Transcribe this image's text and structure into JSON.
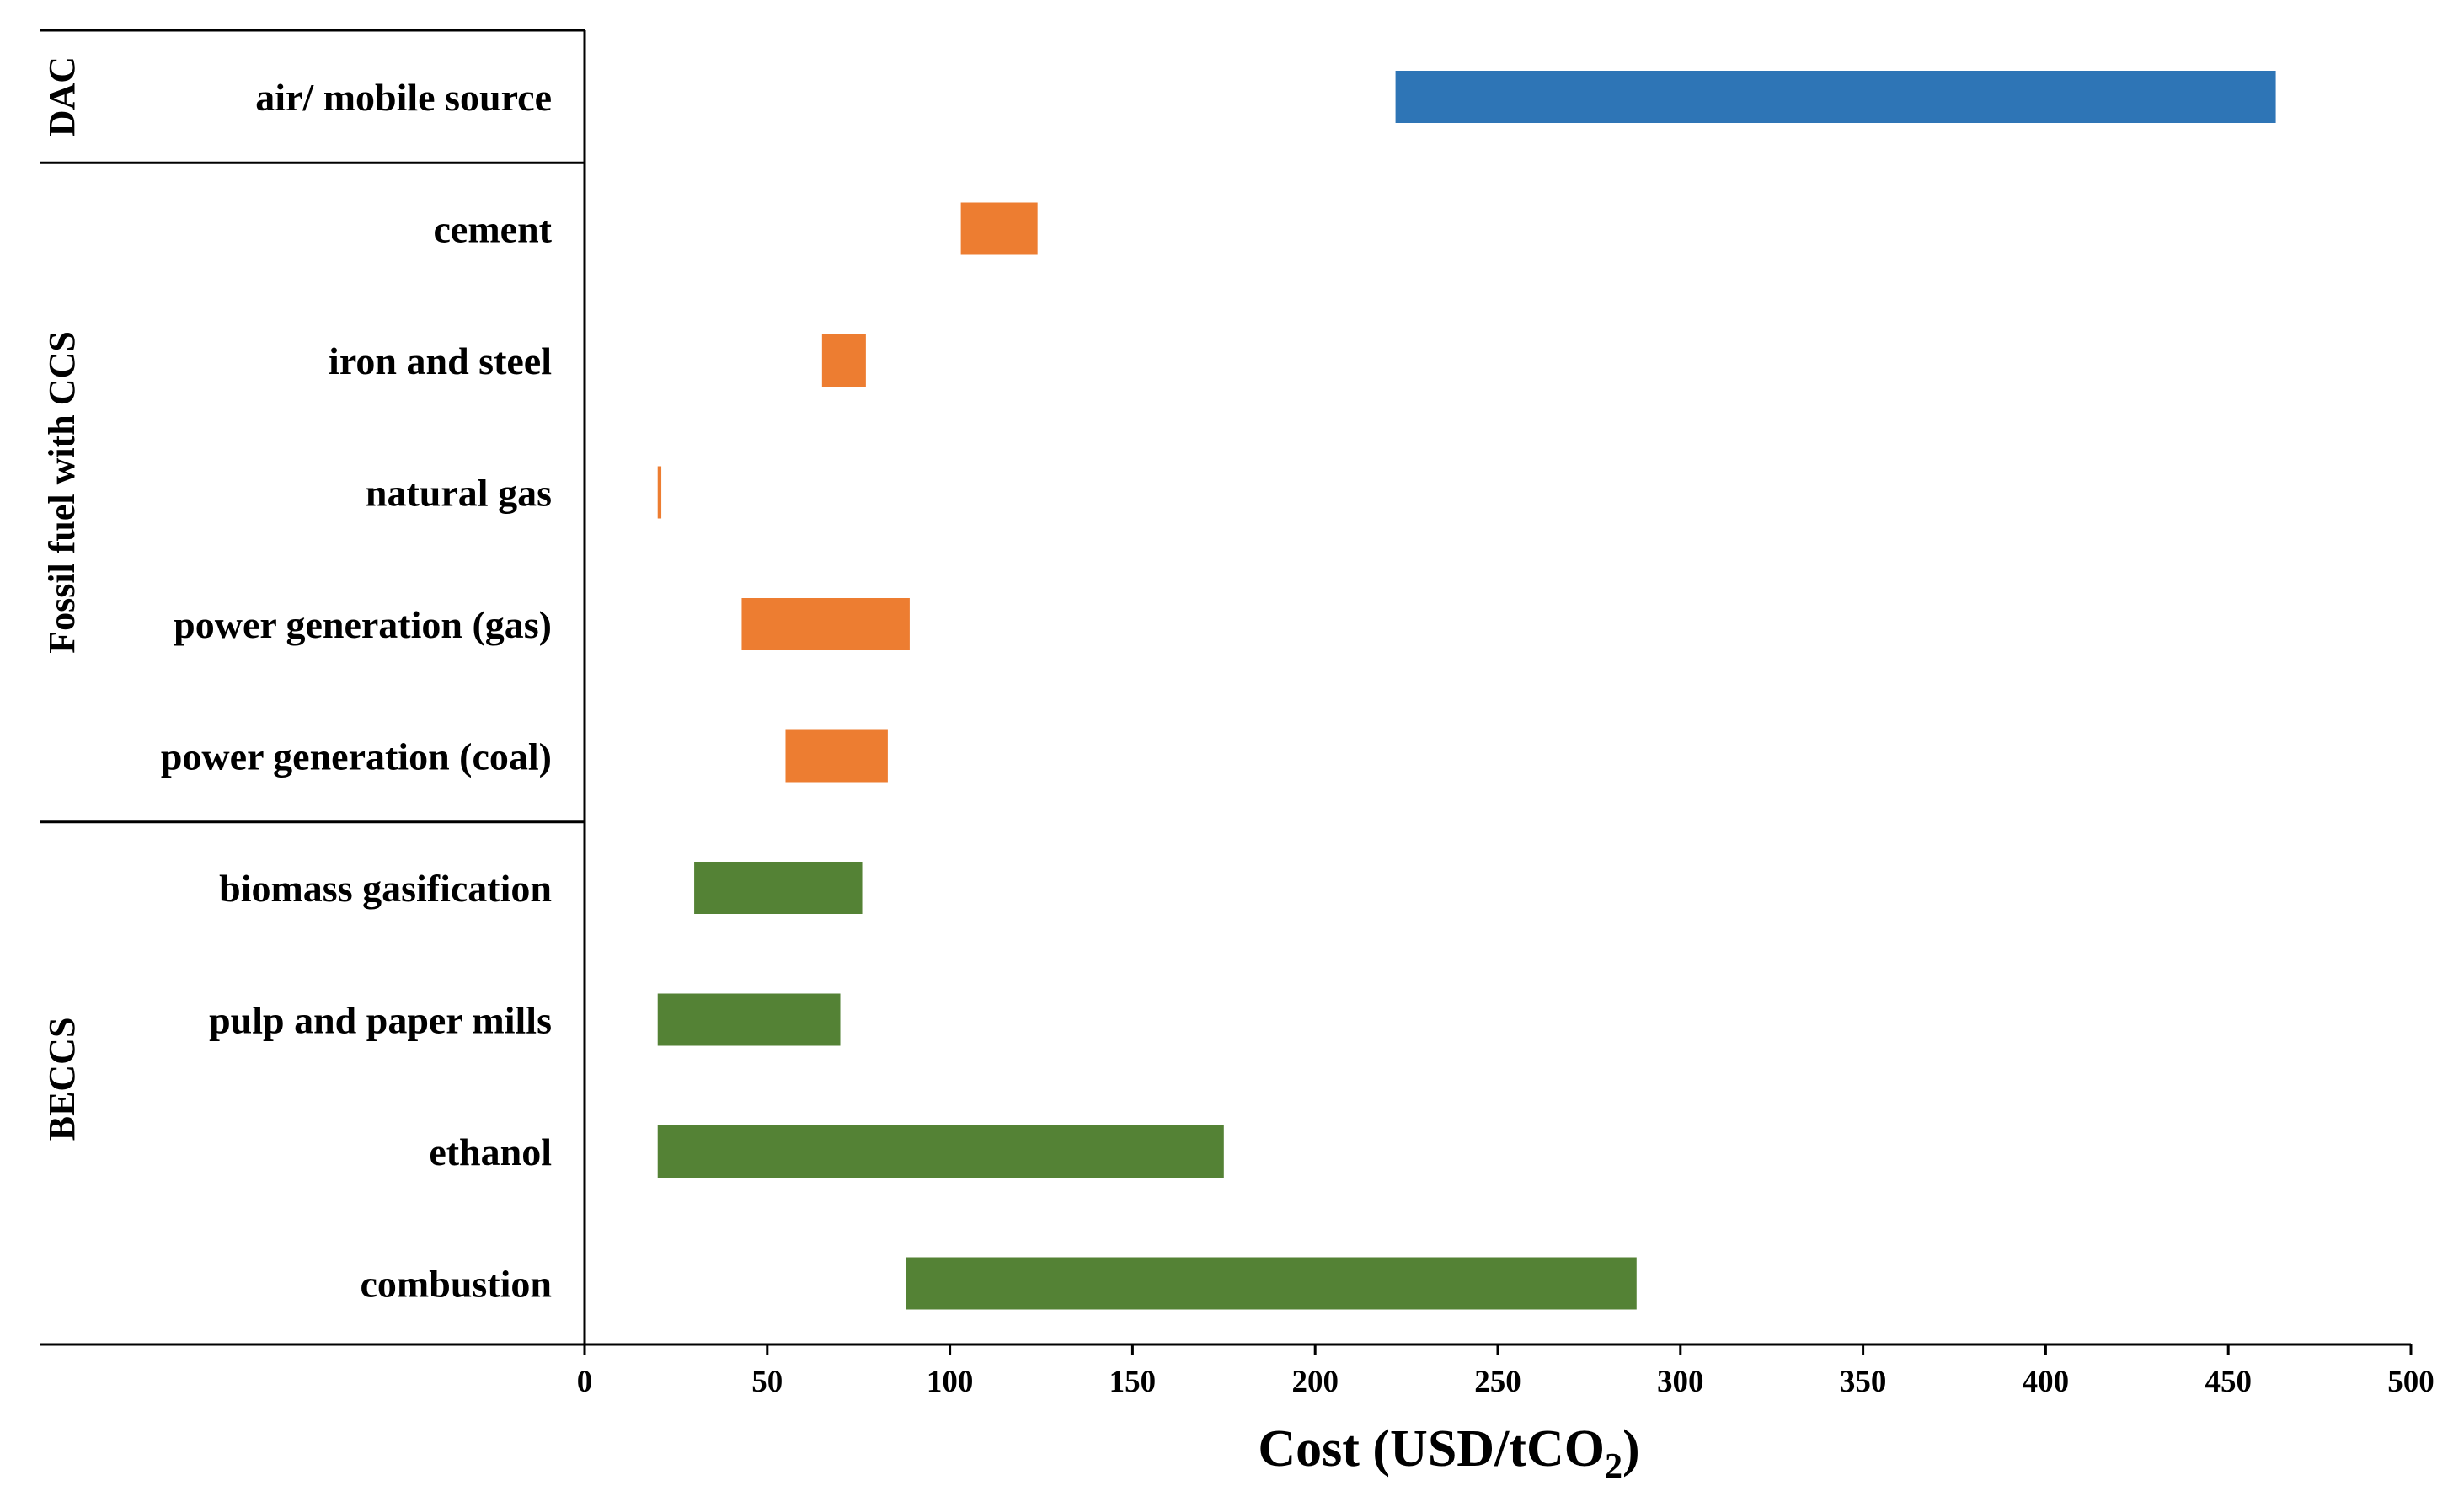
{
  "chart_data": {
    "type": "bar",
    "orientation": "horizontal",
    "style": "floating-range",
    "title": "",
    "xlabel": "Cost (USD/tCO",
    "xlabel_subscript": "2",
    "xlabel_suffix": ")",
    "xlim": [
      0,
      500
    ],
    "xticks": [
      "0",
      "50",
      "100",
      "150",
      "200",
      "250",
      "300",
      "350",
      "400",
      "450",
      "500"
    ],
    "groups": [
      {
        "name": "DAC",
        "color": "#2e75b6"
      },
      {
        "name": "Fossil fuel with CCS",
        "color": "#ed7d31"
      },
      {
        "name": "BECCS",
        "color": "#548235"
      }
    ],
    "categories": [
      {
        "label": "air/ mobile  source",
        "group": "DAC",
        "min": 222,
        "max": 463
      },
      {
        "label": "cement",
        "group": "Fossil fuel with CCS",
        "min": 103,
        "max": 124
      },
      {
        "label": "iron and steel",
        "group": "Fossil fuel with CCS",
        "min": 65,
        "max": 77
      },
      {
        "label": "natural gas",
        "group": "Fossil fuel with CCS",
        "min": 20,
        "max": 21
      },
      {
        "label": "power generation (gas)",
        "group": "Fossil fuel with CCS",
        "min": 43,
        "max": 89
      },
      {
        "label": "power generation (coal)",
        "group": "Fossil fuel with CCS",
        "min": 55,
        "max": 83
      },
      {
        "label": "biomass gasification",
        "group": "BECCS",
        "min": 30,
        "max": 76
      },
      {
        "label": "pulp and paper mills",
        "group": "BECCS",
        "min": 20,
        "max": 70
      },
      {
        "label": "ethanol",
        "group": "BECCS",
        "min": 20,
        "max": 175
      },
      {
        "label": "combustion",
        "group": "BECCS",
        "min": 88,
        "max": 288
      }
    ]
  }
}
